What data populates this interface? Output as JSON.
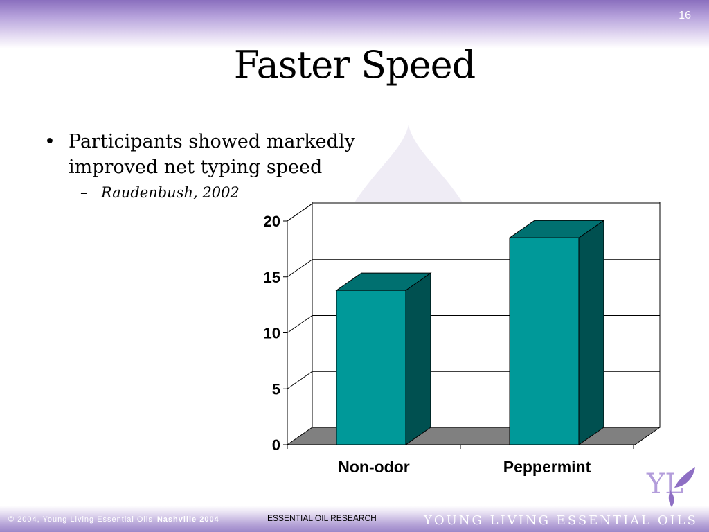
{
  "slide": {
    "number": "16",
    "title": "Faster Speed",
    "bullet": "Participants showed markedly improved net typing speed",
    "bullet_symbol": "•",
    "sub_bullet_symbol": "–",
    "sub_bullet": "Raudenbush, 2002"
  },
  "footer": {
    "copyright": "© 2004, Young Living Essential Oils",
    "event": "Nashville 2004",
    "center": "ESSENTIAL OIL RESEARCH",
    "brand": "YOUNG LIVING ESSENTIAL OILS",
    "logo_text": "YL"
  },
  "colors": {
    "bar_front": "#009999",
    "bar_side": "#005050",
    "bar_top": "#007070",
    "floor": "#808080",
    "accent_purple": "#8a6fbe"
  },
  "chart_data": {
    "type": "bar",
    "categories": [
      "Non-odor",
      "Peppermint"
    ],
    "values": [
      13.8,
      18.5
    ],
    "title": "",
    "xlabel": "",
    "ylabel": "",
    "ylim": [
      0,
      20
    ],
    "yticks": [
      0,
      5,
      10,
      15,
      20
    ],
    "grid": true,
    "three_d": true,
    "legend": "none"
  }
}
